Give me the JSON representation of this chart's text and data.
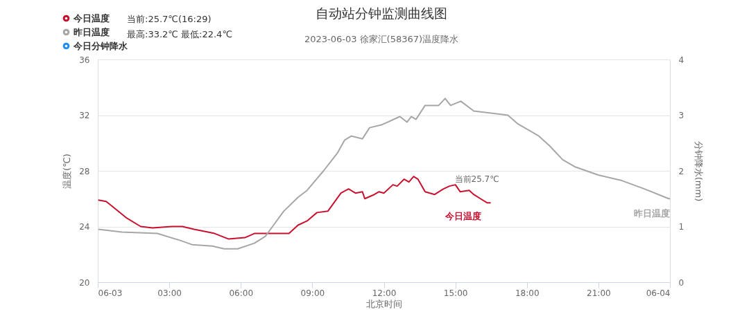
{
  "chart_data": {
    "type": "line",
    "title": "自动站分钟监测曲线图",
    "subtitle": "2023-06-03 徐家汇(58367)温度降水",
    "xlabel": "北京时间",
    "ylabel": "温度(℃)",
    "y2label": "分钟降水(mm)",
    "xlim": [
      0,
      24
    ],
    "xticks": [
      {
        "value": 0,
        "label": "06-03"
      },
      {
        "value": 3,
        "label": "03:00"
      },
      {
        "value": 6,
        "label": "06:00"
      },
      {
        "value": 9,
        "label": "09:00"
      },
      {
        "value": 12,
        "label": "12:00"
      },
      {
        "value": 15,
        "label": "15:00"
      },
      {
        "value": 18,
        "label": "18:00"
      },
      {
        "value": 21,
        "label": "21:00"
      },
      {
        "value": 24,
        "label": "06-04"
      }
    ],
    "ylim": [
      20,
      36
    ],
    "yticks": [
      20,
      24,
      28,
      32,
      36
    ],
    "y2lim": [
      0,
      4
    ],
    "y2ticks": [
      0,
      1,
      2,
      3,
      4
    ],
    "grid": "y",
    "legend": "top left",
    "line_style": "solid",
    "series": [
      {
        "name": "今日温度",
        "color": "#c8102e",
        "x": [
          0.02,
          0.35,
          0.64,
          1.22,
          1.8,
          2.3,
          3.1,
          3.55,
          4.04,
          4.62,
          4.9,
          5.49,
          6.17,
          6.57,
          7.0,
          7.73,
          8.02,
          8.4,
          8.78,
          9.19,
          9.65,
          10.2,
          10.52,
          10.81,
          11.1,
          11.2,
          11.6,
          11.8,
          12.0,
          12.38,
          12.56,
          12.85,
          13.05,
          13.25,
          13.43,
          13.73,
          14.13,
          14.5,
          14.75,
          15.0,
          15.2,
          15.58,
          15.77,
          16.05,
          16.34,
          16.483
        ],
        "values": [
          25.9,
          25.8,
          25.4,
          24.6,
          24.0,
          23.9,
          24.0,
          24.0,
          23.8,
          23.6,
          23.5,
          23.1,
          23.2,
          23.5,
          23.5,
          23.5,
          23.5,
          24.1,
          24.4,
          25.0,
          25.1,
          26.4,
          26.7,
          26.4,
          26.5,
          26.0,
          26.3,
          26.5,
          26.4,
          27.0,
          26.9,
          27.4,
          27.2,
          27.6,
          27.4,
          26.5,
          26.3,
          26.7,
          26.9,
          27.0,
          26.5,
          26.6,
          26.3,
          26.0,
          25.7,
          25.7
        ]
      },
      {
        "name": "昨日温度",
        "color": "#a6a6a6",
        "x": [
          0.02,
          1.0,
          2.5,
          3.46,
          3.95,
          4.8,
          5.3,
          5.87,
          6.57,
          7.03,
          7.33,
          7.8,
          8.4,
          8.78,
          9.47,
          10.06,
          10.35,
          10.64,
          11.1,
          11.4,
          11.9,
          12.67,
          12.97,
          13.15,
          13.35,
          13.73,
          14.3,
          14.57,
          14.8,
          15.23,
          15.77,
          16.25,
          17.2,
          17.6,
          18.5,
          18.95,
          19.5,
          20.0,
          20.99,
          21.98,
          22.93,
          23.95,
          24.0
        ],
        "values": [
          23.8,
          23.6,
          23.5,
          23.0,
          22.7,
          22.6,
          22.4,
          22.4,
          22.8,
          23.3,
          24.0,
          25.1,
          26.1,
          26.6,
          28.0,
          29.3,
          30.2,
          30.5,
          30.3,
          31.1,
          31.3,
          31.9,
          31.5,
          31.9,
          31.7,
          32.7,
          32.7,
          33.2,
          32.7,
          33.0,
          32.3,
          32.2,
          32.0,
          31.4,
          30.5,
          29.8,
          28.8,
          28.3,
          27.7,
          27.3,
          26.7,
          26.0,
          26.0
        ]
      },
      {
        "name": "今日分钟降水",
        "color": "#1e8ff0",
        "axis": "y2"
      }
    ],
    "annotations": [
      "当前:25.7℃(16:29)",
      "最高:33.2℃ 最低:22.4℃",
      {
        "text": "当前25.7℃",
        "x": 16.483,
        "y": 25.7
      }
    ]
  }
}
